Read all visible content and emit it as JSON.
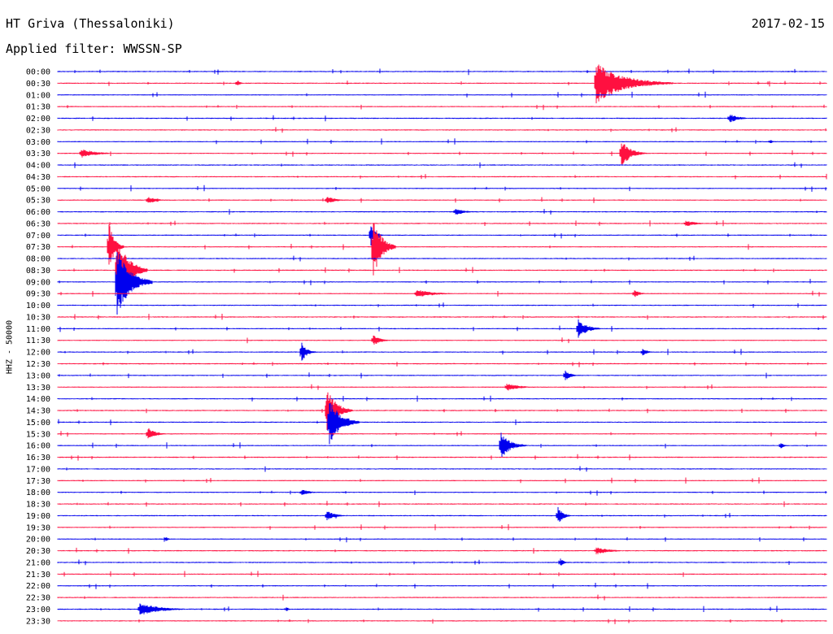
{
  "header": {
    "station": "HT Griva (Thessaloniki)",
    "date": "2017-02-15",
    "filter": "Applied filter: WWSSN-SP"
  },
  "channel_label": "HHZ - 50000",
  "colors": {
    "even_rows": "#0000ee",
    "odd_rows": "#ff1040",
    "text": "#000000"
  },
  "chart_data": {
    "type": "line",
    "title": "HT Griva (Thessaloniki)",
    "subtitle": "Applied filter: WWSSN-SP",
    "xlabel": "",
    "ylabel": "HHZ - 50000",
    "grid": false,
    "rows": [
      "00:00",
      "00:30",
      "01:00",
      "01:30",
      "02:00",
      "02:30",
      "03:00",
      "03:30",
      "04:00",
      "04:30",
      "05:00",
      "05:30",
      "06:00",
      "06:30",
      "07:00",
      "07:30",
      "08:00",
      "08:30",
      "09:00",
      "09:30",
      "10:00",
      "10:30",
      "11:00",
      "11:30",
      "12:00",
      "12:30",
      "13:00",
      "13:30",
      "14:00",
      "14:30",
      "15:00",
      "15:30",
      "16:00",
      "16:30",
      "17:00",
      "17:30",
      "18:00",
      "18:30",
      "19:00",
      "19:30",
      "20:00",
      "20:30",
      "21:00",
      "21:30",
      "22:00",
      "22:30",
      "23:00",
      "23:30"
    ],
    "row_duration_min": 30,
    "events": [
      {
        "row": "00:30",
        "minute": 21.0,
        "amplitude": 26,
        "duration_min": 3.0
      },
      {
        "row": "00:30",
        "minute": 7.0,
        "amplitude": 5,
        "duration_min": 0.3
      },
      {
        "row": "02:00",
        "minute": 26.2,
        "amplitude": 6,
        "duration_min": 1.0
      },
      {
        "row": "03:00",
        "minute": 27.8,
        "amplitude": 3,
        "duration_min": 0.3
      },
      {
        "row": "03:30",
        "minute": 0.9,
        "amplitude": 6,
        "duration_min": 1.6
      },
      {
        "row": "03:30",
        "minute": 22.0,
        "amplitude": 17,
        "duration_min": 1.0
      },
      {
        "row": "05:30",
        "minute": 3.5,
        "amplitude": 5,
        "duration_min": 1.0
      },
      {
        "row": "05:30",
        "minute": 10.5,
        "amplitude": 5,
        "duration_min": 1.0
      },
      {
        "row": "06:00",
        "minute": 15.5,
        "amplitude": 5,
        "duration_min": 1.0
      },
      {
        "row": "06:30",
        "minute": 24.5,
        "amplitude": 4,
        "duration_min": 1.2
      },
      {
        "row": "07:00",
        "minute": 12.2,
        "amplitude": 15,
        "duration_min": 0.5
      },
      {
        "row": "07:30",
        "minute": 2.0,
        "amplitude": 30,
        "duration_min": 0.6
      },
      {
        "row": "07:30",
        "minute": 12.3,
        "amplitude": 40,
        "duration_min": 0.9
      },
      {
        "row": "08:30",
        "minute": 2.3,
        "amplitude": 48,
        "duration_min": 1.2
      },
      {
        "row": "09:00",
        "minute": 2.3,
        "amplitude": 45,
        "duration_min": 1.4
      },
      {
        "row": "09:30",
        "minute": 14.0,
        "amplitude": 5,
        "duration_min": 2.0
      },
      {
        "row": "09:30",
        "minute": 22.5,
        "amplitude": 5,
        "duration_min": 0.6
      },
      {
        "row": "11:00",
        "minute": 20.3,
        "amplitude": 12,
        "duration_min": 1.0
      },
      {
        "row": "11:30",
        "minute": 12.3,
        "amplitude": 7,
        "duration_min": 0.8
      },
      {
        "row": "12:00",
        "minute": 9.5,
        "amplitude": 14,
        "duration_min": 0.6
      },
      {
        "row": "12:00",
        "minute": 22.8,
        "amplitude": 5,
        "duration_min": 0.6
      },
      {
        "row": "13:00",
        "minute": 19.8,
        "amplitude": 7,
        "duration_min": 0.6
      },
      {
        "row": "13:30",
        "minute": 17.5,
        "amplitude": 5,
        "duration_min": 1.5
      },
      {
        "row": "14:30",
        "minute": 10.5,
        "amplitude": 30,
        "duration_min": 1.0
      },
      {
        "row": "15:00",
        "minute": 10.6,
        "amplitude": 30,
        "duration_min": 1.2
      },
      {
        "row": "15:30",
        "minute": 3.5,
        "amplitude": 9,
        "duration_min": 0.8
      },
      {
        "row": "16:00",
        "minute": 17.3,
        "amplitude": 17,
        "duration_min": 1.0
      },
      {
        "row": "16:00",
        "minute": 28.2,
        "amplitude": 6,
        "duration_min": 0.3
      },
      {
        "row": "18:00",
        "minute": 9.5,
        "amplitude": 4,
        "duration_min": 1.0
      },
      {
        "row": "19:00",
        "minute": 10.5,
        "amplitude": 6,
        "duration_min": 1.0
      },
      {
        "row": "19:00",
        "minute": 19.5,
        "amplitude": 12,
        "duration_min": 0.6
      },
      {
        "row": "20:00",
        "minute": 4.2,
        "amplitude": 4,
        "duration_min": 0.3
      },
      {
        "row": "20:30",
        "minute": 21.0,
        "amplitude": 5,
        "duration_min": 1.5
      },
      {
        "row": "21:00",
        "minute": 19.6,
        "amplitude": 6,
        "duration_min": 0.4
      },
      {
        "row": "23:00",
        "minute": 3.2,
        "amplitude": 8,
        "duration_min": 2.2
      },
      {
        "row": "23:00",
        "minute": 8.9,
        "amplitude": 4,
        "duration_min": 0.3
      }
    ]
  }
}
